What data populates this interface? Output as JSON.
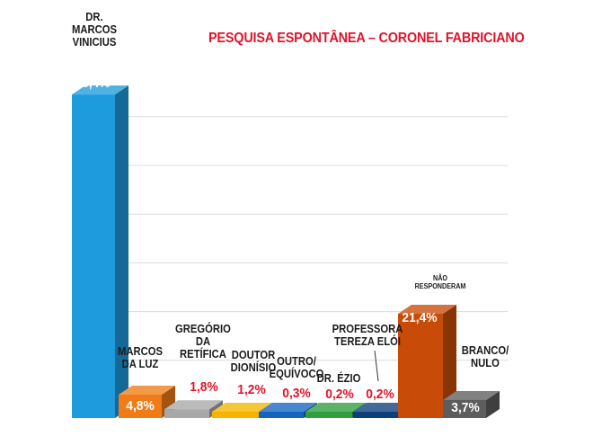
{
  "chart_data": {
    "type": "bar",
    "title": "PESQUISA ESPONTÂNEA – CORONEL FABRICIANO",
    "categories": [
      "DR.\nMARCOS\nVINICIUS",
      "MARCOS\nDA LUZ",
      "GREGÓRIO\nDA\nRETÍFICA",
      "DOUTOR\nDIONÍSIO",
      "OUTRO/\nEQUÍVOCO",
      "DR. ÉZIO",
      "PROFESSORA\nTEREZA ELÓI",
      "NÃO\nRESPONDERAM",
      "BRANCO/\nNULO"
    ],
    "values": [
      66.4,
      4.8,
      1.8,
      1.2,
      0.3,
      0.2,
      0.2,
      21.4,
      3.7
    ],
    "value_labels": [
      "66,4%",
      "4,8%",
      "1,8%",
      "1,2%",
      "0,3%",
      "0,2%",
      "0,2%",
      "21,4%",
      "3,7%"
    ],
    "colors": [
      "#1e9bdd",
      "#f07c17",
      "#a8a8a8",
      "#f5b400",
      "#1565c0",
      "#2e9e3e",
      "#0d3f7a",
      "#c84c08",
      "#5d5d5d"
    ],
    "ylim": [
      0,
      70
    ],
    "grid": true,
    "style": "3d-bar",
    "legend": "none"
  }
}
